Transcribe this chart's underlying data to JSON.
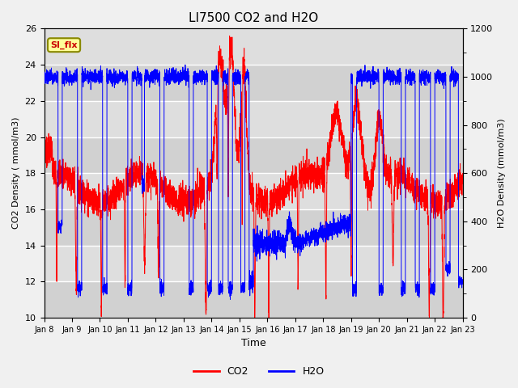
{
  "title": "LI7500 CO2 and H2O",
  "xlabel": "Time",
  "ylabel_left": "CO2 Density ( mmol/m3)",
  "ylabel_right": "H2O Density (mmol/m3)",
  "ylim_left": [
    10,
    26
  ],
  "ylim_right": [
    0,
    1200
  ],
  "yticks_left": [
    10,
    12,
    14,
    16,
    18,
    20,
    22,
    24,
    26
  ],
  "yticks_right": [
    0,
    200,
    400,
    600,
    800,
    1000,
    1200
  ],
  "xtick_labels": [
    "Jan 8",
    "Jan 9",
    "Jan 10",
    "Jan 11",
    "Jan 12",
    "Jan 13",
    "Jan 14",
    "Jan 15",
    "Jan 16",
    "Jan 17",
    "Jan 18",
    "Jan 19",
    "Jan 20",
    "Jan 21",
    "Jan 22",
    "Jan 23"
  ],
  "color_co2": "#FF0000",
  "color_h2o": "#0000FF",
  "annotation_text": "SI_flx",
  "annotation_color": "#CC0000",
  "annotation_bg": "#FFFF99",
  "background_color": "#F0F0F0",
  "legend_co2": "CO2",
  "legend_h2o": "H2O",
  "figsize": [
    6.4,
    4.8
  ],
  "dpi": 100
}
